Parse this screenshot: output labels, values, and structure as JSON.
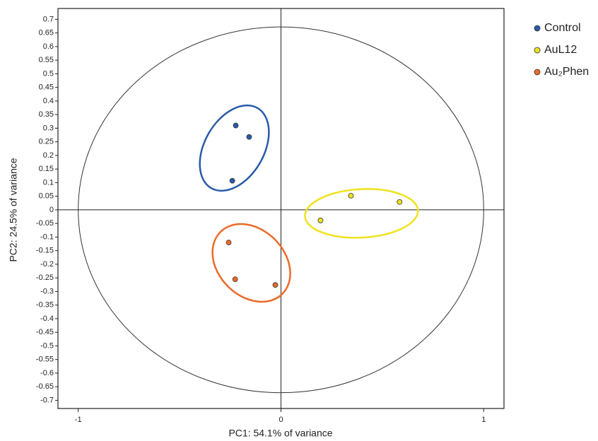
{
  "chart_data": {
    "type": "scatter",
    "x_label": "PC1: 54.1% of variance",
    "y_label": "PC2: 24.5% of variance",
    "xlim": [
      -1.1,
      1.1
    ],
    "ylim": [
      -0.73,
      0.74
    ],
    "xticks": [
      -1,
      0,
      1
    ],
    "yticks": [
      -0.7,
      -0.65,
      -0.6,
      -0.55,
      -0.5,
      -0.45,
      -0.4,
      -0.35,
      -0.3,
      -0.25,
      -0.2,
      -0.15,
      -0.1,
      -0.05,
      0,
      0.05,
      0.1,
      0.15,
      0.2,
      0.25,
      0.3,
      0.35,
      0.4,
      0.45,
      0.5,
      0.55,
      0.6,
      0.65,
      0.7
    ],
    "correlation_circle": {
      "rx": 1,
      "ry": 0.672
    },
    "legend": "outside-right",
    "series": [
      {
        "name": "Control",
        "color": "#2a5aa8",
        "x": [
          -0.223,
          -0.157,
          -0.24
        ],
        "values": [
          0.31,
          0.268,
          0.107
        ],
        "ellipse": {
          "cx": -0.23,
          "cy": 0.227,
          "rx": 0.146,
          "ry": 0.17,
          "angle": 30
        }
      },
      {
        "name": "AuL12",
        "color": "#f0e21c",
        "x": [
          0.345,
          0.585,
          0.195
        ],
        "values": [
          0.052,
          0.029,
          -0.039
        ],
        "ellipse": {
          "cx": 0.397,
          "cy": -0.013,
          "rx": 0.279,
          "ry": 0.089,
          "angle": -3
        }
      },
      {
        "name": "Au₂Phen",
        "color": "#ec6a28",
        "x": [
          -0.258,
          -0.226,
          -0.028
        ],
        "values": [
          -0.12,
          -0.255,
          -0.276
        ],
        "ellipse": {
          "cx": -0.146,
          "cy": -0.195,
          "rx": 0.216,
          "ry": 0.122,
          "angle": 45
        }
      }
    ]
  }
}
